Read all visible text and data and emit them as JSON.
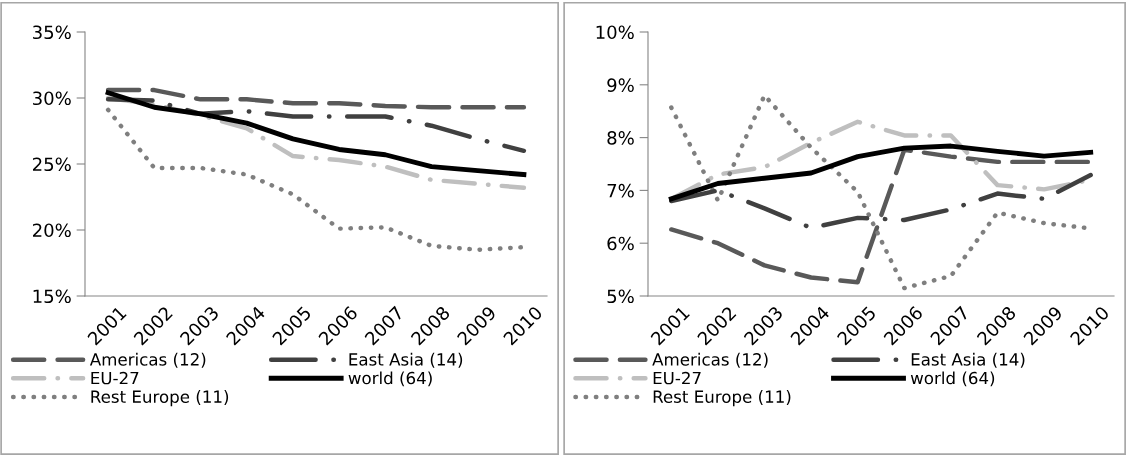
{
  "chart_data": [
    {
      "type": "line",
      "categories": [
        "2001",
        "2002",
        "2003",
        "2004",
        "2005",
        "2006",
        "2007",
        "2008",
        "2009",
        "2010"
      ],
      "ylim": [
        15,
        35
      ],
      "yticks": [
        {
          "value": 15,
          "label": "15%"
        },
        {
          "value": 20,
          "label": "20%"
        },
        {
          "value": 25,
          "label": "25%"
        },
        {
          "value": 30,
          "label": "30%"
        },
        {
          "value": 35,
          "label": "35%"
        }
      ],
      "grid": false,
      "legend": "bottom",
      "marker": "none",
      "series": [
        {
          "name": "Americas (12)",
          "color": "#595959",
          "line_style": "dashed",
          "values": [
            30.6,
            30.6,
            29.9,
            29.9,
            29.6,
            29.6,
            29.4,
            29.3,
            29.3,
            29.3
          ]
        },
        {
          "name": "EU-27",
          "color": "#bfbfbf",
          "line_style": "dashdot",
          "values": [
            30.0,
            29.5,
            28.7,
            27.7,
            25.6,
            25.3,
            24.8,
            23.8,
            23.5,
            23.2
          ]
        },
        {
          "name": "Rest Europe (11)",
          "color": "#7f7f7f",
          "line_style": "dotted",
          "values": [
            29.1,
            24.7,
            24.7,
            24.2,
            22.7,
            20.1,
            20.2,
            18.8,
            18.5,
            18.7
          ]
        },
        {
          "name": "East Asia (14)",
          "color": "#404040",
          "line_style": "longdashdot",
          "values": [
            29.9,
            29.8,
            28.8,
            29.0,
            28.6,
            28.6,
            28.6,
            27.9,
            26.9,
            26.0
          ]
        },
        {
          "name": "world (64)",
          "color": "#000000",
          "line_style": "solid",
          "values": [
            30.4,
            29.3,
            28.8,
            28.1,
            26.9,
            26.1,
            25.7,
            24.8,
            24.5,
            24.2
          ]
        }
      ]
    },
    {
      "type": "line",
      "categories": [
        "2001",
        "2002",
        "2003",
        "2004",
        "2005",
        "2006",
        "2007",
        "2008",
        "2009",
        "2010"
      ],
      "ylim": [
        5,
        10
      ],
      "yticks": [
        {
          "value": 5,
          "label": "5%"
        },
        {
          "value": 6,
          "label": "6%"
        },
        {
          "value": 7,
          "label": "7%"
        },
        {
          "value": 8,
          "label": "8%"
        },
        {
          "value": 9,
          "label": "9%"
        },
        {
          "value": 10,
          "label": "10%"
        }
      ],
      "grid": false,
      "legend": "bottom",
      "marker": "none",
      "series": [
        {
          "name": "Americas (12)",
          "color": "#595959",
          "line_style": "dashed",
          "values": [
            6.26,
            6.0,
            5.58,
            5.35,
            5.26,
            7.77,
            7.64,
            7.54,
            7.54,
            7.54
          ]
        },
        {
          "name": "EU-27",
          "color": "#bfbfbf",
          "line_style": "dashdot",
          "values": [
            6.84,
            7.3,
            7.44,
            7.9,
            8.3,
            8.04,
            8.04,
            7.1,
            7.02,
            7.2
          ]
        },
        {
          "name": "Rest Europe (11)",
          "color": "#7f7f7f",
          "line_style": "dotted",
          "values": [
            8.57,
            6.81,
            8.8,
            7.81,
            6.97,
            5.15,
            5.38,
            6.58,
            6.38,
            6.28
          ]
        },
        {
          "name": "East Asia (14)",
          "color": "#404040",
          "line_style": "longdashdot",
          "values": [
            6.8,
            7.0,
            6.66,
            6.29,
            6.48,
            6.44,
            6.64,
            6.94,
            6.84,
            7.29
          ]
        },
        {
          "name": "world (64)",
          "color": "#000000",
          "line_style": "solid",
          "values": [
            6.84,
            7.13,
            7.23,
            7.33,
            7.64,
            7.8,
            7.84,
            7.74,
            7.65,
            7.72
          ]
        }
      ]
    }
  ]
}
